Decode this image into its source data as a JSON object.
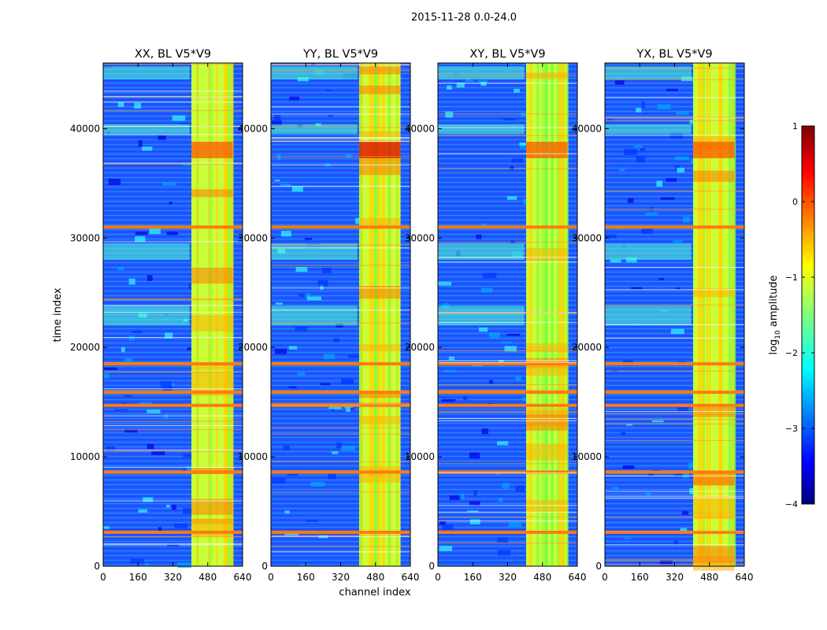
{
  "figure_title": "2015-11-28 0.0-24.0",
  "chart_data": {
    "type": "heatmap",
    "title": "2015-11-28 0.0-24.0",
    "xlabel": "channel index",
    "ylabel": "time index",
    "xlim": [
      0,
      640
    ],
    "ylim": [
      0,
      46000
    ],
    "x_ticks": [
      0,
      160,
      320,
      480,
      640
    ],
    "y_ticks": [
      0,
      10000,
      20000,
      30000,
      40000
    ],
    "panels": [
      {
        "title": "XX, BL V5*V9",
        "polarization": "XX",
        "baseline": "V5*V9"
      },
      {
        "title": "YY, BL V5*V9",
        "polarization": "YY",
        "baseline": "V5*V9"
      },
      {
        "title": "XY, BL V5*V9",
        "polarization": "XY",
        "baseline": "V5*V9"
      },
      {
        "title": "YX, BL V5*V9",
        "polarization": "YX",
        "baseline": "V5*V9"
      }
    ],
    "colorbar": {
      "label": "log10 amplitude",
      "label_main": "log",
      "label_sub": "10",
      "label_rest": " amplitude",
      "range": [
        -4,
        1
      ],
      "ticks": [
        "1",
        "0",
        "−1",
        "−2",
        "−3",
        "−4"
      ],
      "tick_values": [
        1,
        0,
        -1,
        -2,
        -3,
        -4
      ],
      "colormap": "jet"
    },
    "rfi_channel_range": [
      405,
      595
    ],
    "flagged_time_rows": [
      14700,
      15900,
      18500,
      8600,
      31000,
      3100
    ]
  }
}
